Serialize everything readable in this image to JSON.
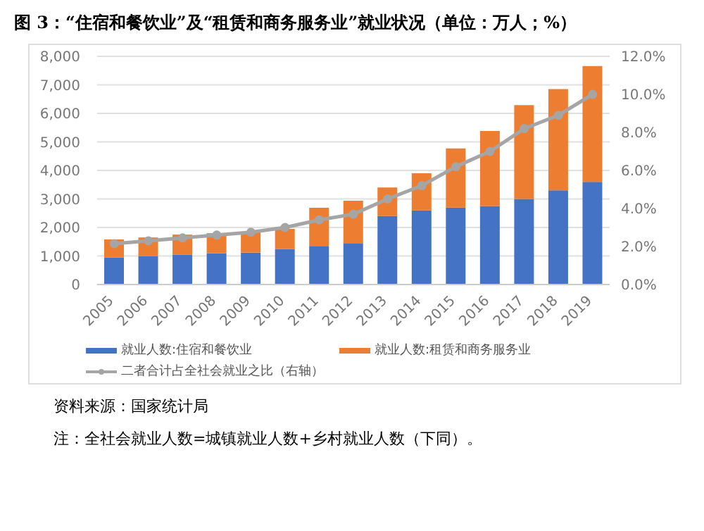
{
  "chart_data": {
    "type": "bar",
    "title": "图 3：“住宿和餐饮业”及“租赁和商务服务业”就业状况（单位：万人；%）",
    "categories": [
      "2005",
      "2006",
      "2007",
      "2008",
      "2009",
      "2010",
      "2011",
      "2012",
      "2013",
      "2014",
      "2015",
      "2016",
      "2017",
      "2018",
      "2019"
    ],
    "series": [
      {
        "name": "就业人数:住宿和餐饮业",
        "color": "#4472c4",
        "values": [
          950,
          990,
          1040,
          1100,
          1120,
          1240,
          1350,
          1450,
          2400,
          2600,
          2700,
          2750,
          3000,
          3300,
          3600
        ]
      },
      {
        "name": "就业人数:租赁和商务服务业",
        "color": "#ed7d31",
        "values": [
          630,
          660,
          710,
          700,
          730,
          710,
          1340,
          1490,
          1000,
          1300,
          2070,
          2630,
          3290,
          3550,
          4060
        ]
      },
      {
        "name": "二者合计占全社会就业之比（右轴）",
        "type": "line",
        "axis": "y2",
        "color": "#a5a5a5",
        "values": [
          2.15,
          2.3,
          2.45,
          2.6,
          2.75,
          3.0,
          3.4,
          3.7,
          4.5,
          5.2,
          6.2,
          7.0,
          8.2,
          8.9,
          10.0
        ]
      }
    ],
    "stacked": true,
    "ylim": [
      0,
      8000
    ],
    "yticks": [
      0,
      {
        "value": 1000,
        "label": "1,000"
      },
      {
        "value": 2000,
        "label": "2,000"
      },
      {
        "value": 3000,
        "label": "3,000"
      },
      {
        "value": 4000,
        "label": "4,000"
      },
      {
        "value": 5000,
        "label": "5,000"
      },
      {
        "value": 6000,
        "label": "6,000"
      },
      {
        "value": 7000,
        "label": "7,000"
      },
      {
        "value": 8000,
        "label": "8,000"
      }
    ],
    "y2lim": [
      0,
      12
    ],
    "y2ticks": [
      {
        "value": 0,
        "label": "0.0%"
      },
      {
        "value": 2,
        "label": "2.0%"
      },
      {
        "value": 4,
        "label": "4.0%"
      },
      {
        "value": 6,
        "label": "6.0%"
      },
      {
        "value": 8,
        "label": "8.0%"
      },
      {
        "value": 10,
        "label": "10.0%"
      },
      {
        "value": 12,
        "label": "12.0%"
      }
    ],
    "grid": "y",
    "legend": "bottom",
    "marker": "circle",
    "annotations": [
      "资料来源：国家统计局",
      "注：全社会就业人数=城镇就业人数+乡村就业人数（下同）。"
    ]
  }
}
